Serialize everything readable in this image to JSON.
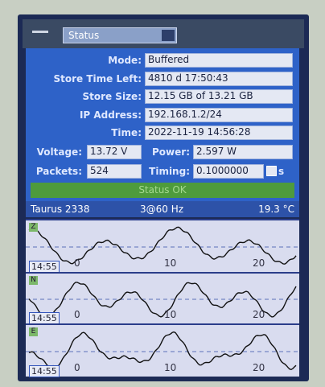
{
  "header": {
    "dropdown": "Status"
  },
  "fields": [
    {
      "label": "Mode:",
      "value": "Buffered"
    },
    {
      "label": "Store Time Left:",
      "value": "4810 d 17:50:43"
    },
    {
      "label": "Store Size:",
      "value": "12.15 GB  of  13.21 GB"
    },
    {
      "label": "IP Address:",
      "value": "192.168.1.2/24"
    },
    {
      "label": "Time:",
      "value": "2022-11-19 14:56:28"
    }
  ],
  "voltage": {
    "label": "Voltage:",
    "value": "13.72 V"
  },
  "power": {
    "label": "Power:",
    "value": "2.597 W"
  },
  "packets": {
    "label": "Packets:",
    "value": "524"
  },
  "timing": {
    "label": "Timing:",
    "value": "0.1000000",
    "unit": "s"
  },
  "status": "Status OK",
  "info": {
    "device": "Taurus 2338",
    "rate": "3@60 Hz",
    "temperature": "19.3 °C"
  },
  "traces": [
    {
      "channel": "Z",
      "time": "14:55",
      "ticks": [
        "0",
        "10",
        "20"
      ]
    },
    {
      "channel": "N",
      "time": "14:55",
      "ticks": [
        "0",
        "10",
        "20"
      ]
    },
    {
      "channel": "E",
      "time": "14:55",
      "ticks": [
        "0",
        "10",
        "20"
      ]
    }
  ]
}
